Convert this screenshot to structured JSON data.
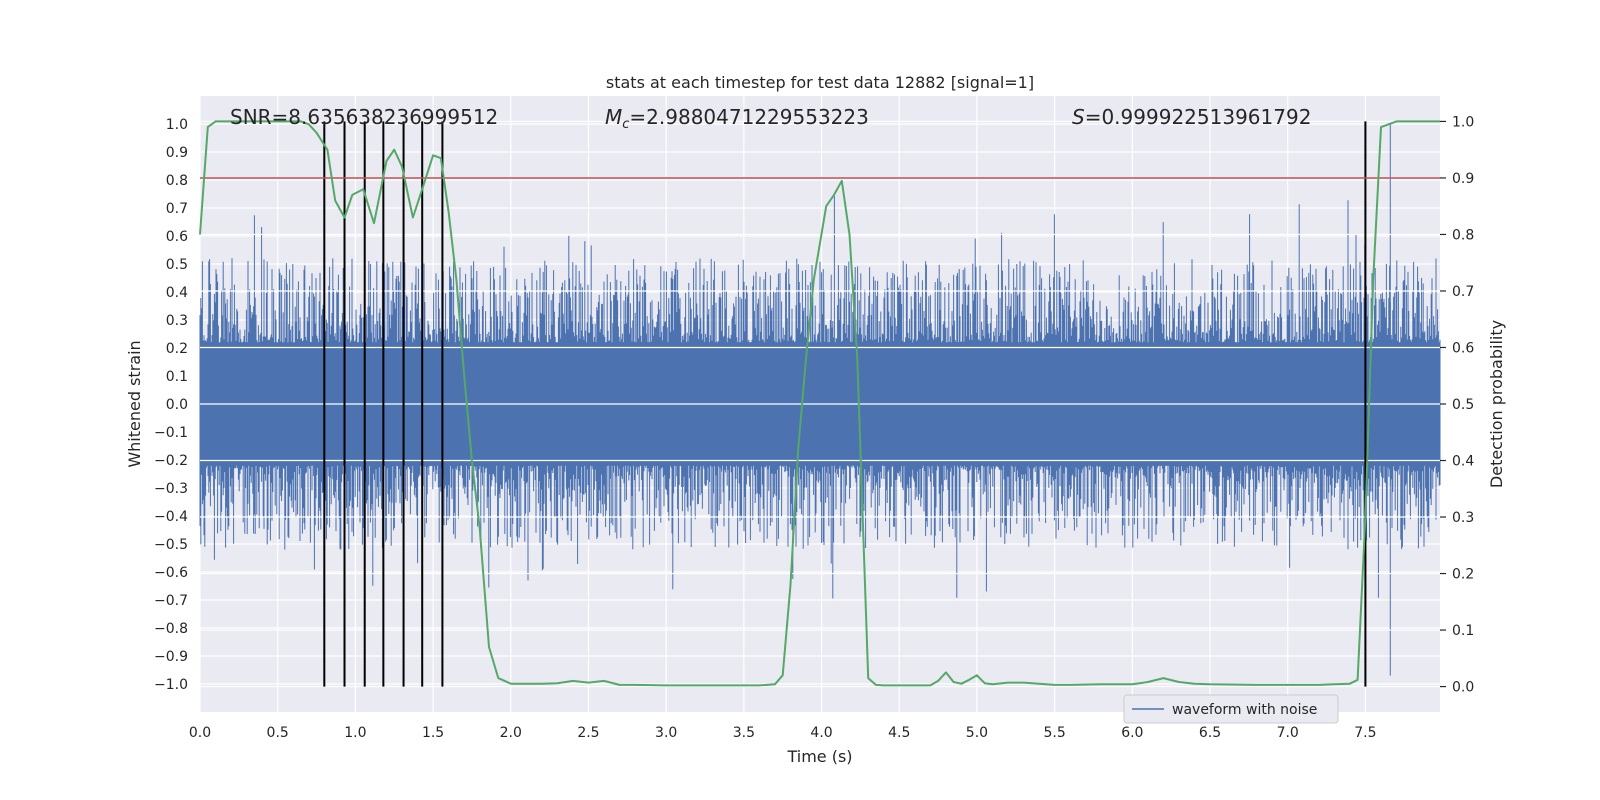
{
  "chart_data": {
    "type": "line",
    "title": "stats at each timestep for test data 12882 [signal=1]",
    "xlabel": "Time (s)",
    "ylabel_left": "Whitened strain",
    "ylabel_right": "Detection probability",
    "xlim": [
      0.0,
      7.98
    ],
    "ylim_left": [
      -1.1,
      1.1
    ],
    "ylim_right": [
      -0.045,
      1.045
    ],
    "x_ticks": [
      0.0,
      0.5,
      1.0,
      1.5,
      2.0,
      2.5,
      3.0,
      3.5,
      4.0,
      4.5,
      5.0,
      5.5,
      6.0,
      6.5,
      7.0,
      7.5
    ],
    "x_tick_labels": [
      "0.0",
      "0.5",
      "1.0",
      "1.5",
      "2.0",
      "2.5",
      "3.0",
      "3.5",
      "4.0",
      "4.5",
      "5.0",
      "5.5",
      "6.0",
      "6.5",
      "7.0",
      "7.5"
    ],
    "y_left_ticks": [
      1.0,
      0.9,
      0.8,
      0.7,
      0.6,
      0.5,
      0.4,
      0.3,
      0.2,
      0.1,
      0.0,
      -0.1,
      -0.2,
      -0.3,
      -0.4,
      -0.5,
      -0.6,
      -0.7,
      -0.8,
      -0.9,
      -1.0
    ],
    "y_left_tick_labels": [
      "1.0",
      "0.9",
      "0.8",
      "0.7",
      "0.6",
      "0.5",
      "0.4",
      "0.3",
      "0.2",
      "0.1",
      "0.0",
      "−0.1",
      "−0.2",
      "−0.3",
      "−0.4",
      "−0.5",
      "−0.6",
      "−0.7",
      "−0.8",
      "−0.9",
      "−1.0"
    ],
    "y_right_ticks": [
      1.0,
      0.9,
      0.8,
      0.7,
      0.6,
      0.5,
      0.4,
      0.3,
      0.2,
      0.1,
      0.0
    ],
    "y_right_tick_labels": [
      "1.0",
      "0.9",
      "0.8",
      "0.7",
      "0.6",
      "0.5",
      "0.4",
      "0.3",
      "0.2",
      "0.1",
      "0.0"
    ],
    "annotations": {
      "snr": "SNR=8.635638236999512",
      "mc_symbol": "M",
      "mc_sub": "c",
      "mc_value": "=2.9880471229553223",
      "s_symbol": "S",
      "s_value": "=0.999922513961792"
    },
    "legend": {
      "label": "waveform with noise",
      "position": "lower-right"
    },
    "waveform": {
      "name": "waveform with noise",
      "color": "#4c72b0",
      "x_range": [
        0.0,
        7.98
      ],
      "core_amplitude": 0.22,
      "typical_envelope": 0.42,
      "max_peak": 1.0,
      "min_peak": -0.97
    },
    "threshold": {
      "value": 0.9,
      "axis": "right",
      "color": "#c44e52"
    },
    "detection_probability": {
      "name": "Detection probability",
      "color": "#55a868",
      "x": [
        0.0,
        0.05,
        0.1,
        0.15,
        0.2,
        0.3,
        0.4,
        0.5,
        0.6,
        0.65,
        0.7,
        0.75,
        0.82,
        0.87,
        0.93,
        0.98,
        1.05,
        1.12,
        1.2,
        1.25,
        1.3,
        1.37,
        1.43,
        1.5,
        1.55,
        1.6,
        1.65,
        1.7,
        1.75,
        1.8,
        1.86,
        1.92,
        2.0,
        2.1,
        2.2,
        2.3,
        2.4,
        2.5,
        2.6,
        2.7,
        2.8,
        3.0,
        3.2,
        3.4,
        3.6,
        3.7,
        3.75,
        3.8,
        3.85,
        3.9,
        3.95,
        4.03,
        4.08,
        4.13,
        4.18,
        4.23,
        4.3,
        4.35,
        4.4,
        4.5,
        4.6,
        4.7,
        4.75,
        4.8,
        4.85,
        4.9,
        4.95,
        5.0,
        5.05,
        5.1,
        5.2,
        5.3,
        5.4,
        5.5,
        5.6,
        5.8,
        6.0,
        6.1,
        6.2,
        6.3,
        6.4,
        6.5,
        6.8,
        7.0,
        7.2,
        7.3,
        7.4,
        7.45,
        7.5,
        7.55,
        7.6,
        7.7,
        7.98
      ],
      "y": [
        0.8,
        0.99,
        1.0,
        1.0,
        1.0,
        1.0,
        1.0,
        1.0,
        1.0,
        1.0,
        0.995,
        0.98,
        0.95,
        0.86,
        0.83,
        0.87,
        0.88,
        0.82,
        0.93,
        0.95,
        0.92,
        0.83,
        0.88,
        0.94,
        0.935,
        0.84,
        0.72,
        0.55,
        0.4,
        0.28,
        0.07,
        0.015,
        0.005,
        0.005,
        0.005,
        0.006,
        0.01,
        0.007,
        0.01,
        0.003,
        0.003,
        0.002,
        0.002,
        0.002,
        0.002,
        0.004,
        0.02,
        0.18,
        0.42,
        0.58,
        0.72,
        0.85,
        0.87,
        0.895,
        0.8,
        0.58,
        0.015,
        0.003,
        0.002,
        0.002,
        0.002,
        0.002,
        0.01,
        0.025,
        0.008,
        0.005,
        0.012,
        0.02,
        0.006,
        0.004,
        0.007,
        0.007,
        0.005,
        0.003,
        0.003,
        0.004,
        0.004,
        0.008,
        0.015,
        0.008,
        0.005,
        0.004,
        0.003,
        0.003,
        0.003,
        0.004,
        0.005,
        0.012,
        0.3,
        0.72,
        0.99,
        1.0,
        1.0
      ]
    },
    "vertical_markers": {
      "color": "#000000",
      "x": [
        0.8,
        0.93,
        1.06,
        1.18,
        1.31,
        1.43,
        1.56,
        7.5
      ],
      "y_range_right": [
        0.0,
        1.0
      ]
    }
  }
}
